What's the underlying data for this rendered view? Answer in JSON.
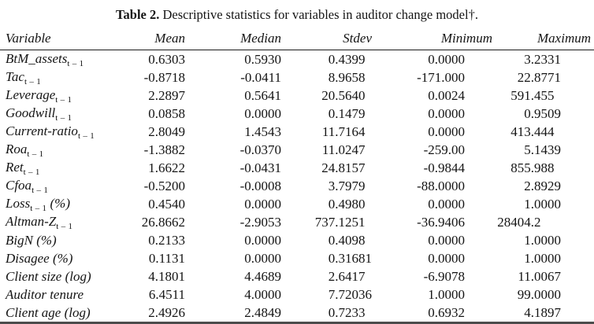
{
  "title": {
    "label": "Table 2.",
    "text": " Descriptive statistics for variables in auditor change model†."
  },
  "table": {
    "columns": [
      "Variable",
      "Mean",
      "Median",
      "Stdev",
      "Minimum",
      "Maximum"
    ],
    "rows": [
      {
        "name": "BtM_assets",
        "sub": "t – 1",
        "suffix": "",
        "values": [
          "0.6303",
          "0.5930",
          "0.4399",
          "0.0000",
          "3.2331"
        ]
      },
      {
        "name": "Tac",
        "sub": "t – 1",
        "suffix": "",
        "values": [
          "-0.8718",
          "-0.0411",
          "8.9658",
          "-171.000",
          "22.8771"
        ]
      },
      {
        "name": "Leverage",
        "sub": "t – 1",
        "suffix": "",
        "values": [
          "2.2897",
          "0.5641",
          "20.5640",
          "0.0024",
          "591.455"
        ]
      },
      {
        "name": "Goodwill",
        "sub": "t – 1",
        "suffix": "",
        "values": [
          "0.0858",
          "0.0000",
          "0.1479",
          "0.0000",
          "0.9509"
        ]
      },
      {
        "name": "Current-ratio",
        "sub": "t – 1",
        "suffix": "",
        "values": [
          "2.8049",
          "1.4543",
          "11.7164",
          "0.0000",
          "413.444"
        ]
      },
      {
        "name": "Roa",
        "sub": "t – 1",
        "suffix": "",
        "values": [
          "-1.3882",
          "-0.0370",
          "11.0247",
          "-259.00",
          "5.1439"
        ]
      },
      {
        "name": "Ret",
        "sub": "t – 1",
        "suffix": "",
        "values": [
          "1.6622",
          "-0.0431",
          "24.8157",
          "-0.9844",
          "855.988"
        ]
      },
      {
        "name": "Cfoa",
        "sub": "t – 1",
        "suffix": "",
        "values": [
          "-0.5200",
          "-0.0008",
          "3.7979",
          "-88.0000",
          "2.8929"
        ]
      },
      {
        "name": "Loss",
        "sub": "t – 1",
        "suffix": " (%)",
        "values": [
          "0.4540",
          "0.0000",
          "0.4980",
          "0.0000",
          "1.0000"
        ]
      },
      {
        "name": "Altman-Z",
        "sub": "t – 1",
        "suffix": "",
        "values": [
          "26.8662",
          "-2.9053",
          "737.1251",
          "-36.9406",
          "28404.2"
        ]
      },
      {
        "name": "BigN",
        "sub": "",
        "suffix": " (%)",
        "values": [
          "0.2133",
          "0.0000",
          "0.4098",
          "0.0000",
          "1.0000"
        ]
      },
      {
        "name": "Disagee",
        "sub": "",
        "suffix": " (%)",
        "values": [
          "0.1131",
          "0.0000",
          "0.31681",
          "0.0000",
          "1.0000"
        ]
      },
      {
        "name": "Client size",
        "sub": "",
        "suffix": " (log)",
        "values": [
          "4.1801",
          "4.4689",
          "2.6417",
          "-6.9078",
          "11.0067"
        ]
      },
      {
        "name": "Auditor tenure",
        "sub": "",
        "suffix": "",
        "values": [
          "6.4511",
          "4.0000",
          "7.72036",
          "1.0000",
          "99.0000"
        ]
      },
      {
        "name": "Client age",
        "sub": "",
        "suffix": " (log)",
        "values": [
          "2.4926",
          "2.4849",
          "0.7233",
          "0.6932",
          "4.1897"
        ]
      }
    ]
  }
}
